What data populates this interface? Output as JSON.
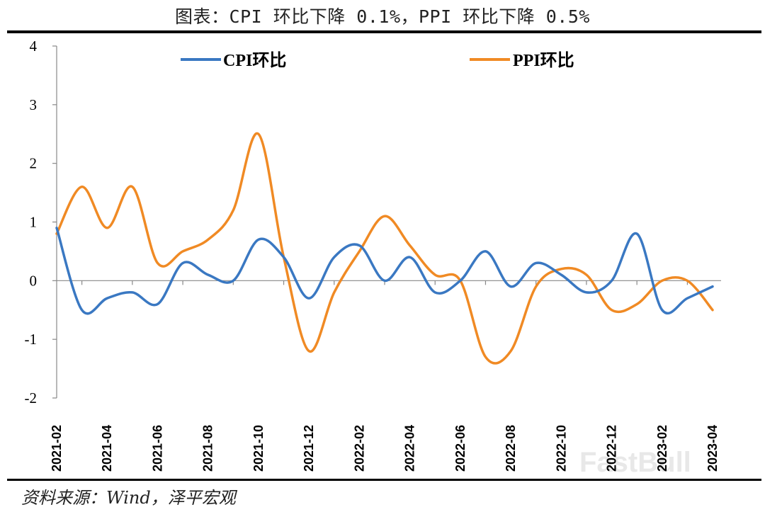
{
  "header": {
    "title": "图表：CPI 环比下降 0.1%，PPI 环比下降 0.5%"
  },
  "footer": {
    "source": "资料来源：Wind，泽平宏观"
  },
  "watermark": "FastBull",
  "chart_data": {
    "type": "line",
    "title": "图表：CPI 环比下降 0.1%，PPI 环比下降 0.5%",
    "x": [
      "2021-02",
      "2021-03",
      "2021-04",
      "2021-05",
      "2021-06",
      "2021-07",
      "2021-08",
      "2021-09",
      "2021-10",
      "2021-11",
      "2021-12",
      "2022-01",
      "2022-02",
      "2022-03",
      "2022-04",
      "2022-05",
      "2022-06",
      "2022-07",
      "2022-08",
      "2022-09",
      "2022-10",
      "2022-11",
      "2022-12",
      "2023-01",
      "2023-02",
      "2023-03",
      "2023-04"
    ],
    "x_tick_labels": [
      "2021-02",
      "2021-04",
      "2021-06",
      "2021-08",
      "2021-10",
      "2021-12",
      "2022-02",
      "2022-04",
      "2022-06",
      "2022-08",
      "2022-10",
      "2022-12",
      "2023-02",
      "2023-04"
    ],
    "y_ticks": [
      4,
      3,
      2,
      1,
      0,
      -1,
      -2
    ],
    "ylim": [
      -2,
      4
    ],
    "legend_position": "top",
    "series": [
      {
        "name": "CPI环比",
        "color": "#3a78c2",
        "values": [
          0.9,
          -0.5,
          -0.3,
          -0.2,
          -0.4,
          0.3,
          0.1,
          0.0,
          0.7,
          0.4,
          -0.3,
          0.4,
          0.6,
          0.0,
          0.4,
          -0.2,
          0.0,
          0.5,
          -0.1,
          0.3,
          0.1,
          -0.2,
          0.0,
          0.8,
          -0.5,
          -0.3,
          -0.1
        ]
      },
      {
        "name": "PPI环比",
        "color": "#f08a24",
        "values": [
          0.8,
          1.6,
          0.9,
          1.6,
          0.3,
          0.5,
          0.7,
          1.2,
          2.5,
          0.4,
          -1.2,
          -0.2,
          0.5,
          1.1,
          0.6,
          0.1,
          0.0,
          -1.3,
          -1.2,
          -0.1,
          0.2,
          0.1,
          -0.5,
          -0.4,
          0.0,
          0.0,
          -0.5
        ]
      }
    ]
  }
}
